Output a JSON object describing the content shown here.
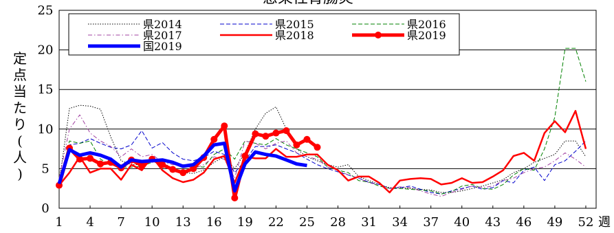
{
  "chart_data": {
    "type": "line",
    "title": "感染性胃腸炎",
    "ylabel": "定点当たり(人)",
    "xlabel": "週",
    "x_ticks": [
      "1",
      "4",
      "7",
      "10",
      "13",
      "16",
      "19",
      "22",
      "25",
      "28",
      "31",
      "34",
      "37",
      "40",
      "43",
      "46",
      "49",
      "52"
    ],
    "y_ticks": [
      "0",
      "5",
      "10",
      "15",
      "20",
      "25"
    ],
    "ylim": [
      0,
      25
    ],
    "xlim": [
      1,
      53
    ],
    "grid": "horizontal",
    "legend_position": "top-left",
    "series": [
      {
        "name": "県2014",
        "style": "dotted",
        "color": "#000000",
        "values": [
          3.2,
          12.6,
          13.0,
          12.9,
          12.5,
          9.0,
          6.0,
          5.5,
          5.5,
          6.2,
          5.8,
          5.0,
          4.5,
          4.4,
          4.8,
          5.8,
          6.5,
          5.0,
          7.0,
          10.0,
          12.0,
          12.8,
          10.0,
          7.5,
          6.5,
          6.0,
          5.5,
          5.2,
          5.5,
          4.0,
          3.5,
          3.0,
          2.6,
          2.6,
          2.5,
          2.4,
          2.3,
          2.0,
          2.0,
          2.2,
          2.5,
          2.8,
          3.2,
          3.6,
          4.5,
          5.0,
          5.8,
          6.3,
          6.8,
          8.5,
          8.5,
          6.5
        ]
      },
      {
        "name": "県2015",
        "style": "dashed",
        "color": "#0000cc",
        "values": [
          3.2,
          8.0,
          8.2,
          8.8,
          8.2,
          7.7,
          7.5,
          8.0,
          9.8,
          7.6,
          8.3,
          7.0,
          6.2,
          6.0,
          6.4,
          7.2,
          6.8,
          4.5,
          6.0,
          7.8,
          7.8,
          8.0,
          7.5,
          7.0,
          6.2,
          5.5,
          5.0,
          4.6,
          4.2,
          3.8,
          3.3,
          3.0,
          2.5,
          2.6,
          2.8,
          2.4,
          2.0,
          1.8,
          2.2,
          2.5,
          2.8,
          2.4,
          2.6,
          3.5,
          3.2,
          4.8,
          5.2,
          3.5,
          5.5,
          6.0,
          7.2,
          8.5
        ]
      },
      {
        "name": "県2016",
        "style": "dashed",
        "color": "#008000",
        "values": [
          2.9,
          8.5,
          8.2,
          8.5,
          6.2,
          5.5,
          5.2,
          5.2,
          5.3,
          5.8,
          6.2,
          5.8,
          5.5,
          5.3,
          5.2,
          6.8,
          7.5,
          6.2,
          8.5,
          8.2,
          8.0,
          8.8,
          8.0,
          7.5,
          7.0,
          6.5,
          5.2,
          4.8,
          4.5,
          3.5,
          3.3,
          2.8,
          2.5,
          2.5,
          2.4,
          2.3,
          2.2,
          1.8,
          2.1,
          2.8,
          3.0,
          2.5,
          2.4,
          3.0,
          4.2,
          5.0,
          4.8,
          7.5,
          11.5,
          20.2,
          20.2,
          16.0
        ]
      },
      {
        "name": "県2017",
        "style": "dashdot",
        "color": "#a040a0",
        "values": [
          3.8,
          10.0,
          11.8,
          9.5,
          8.5,
          7.8,
          6.5,
          7.5,
          6.5,
          6.8,
          5.8,
          5.5,
          5.5,
          5.0,
          5.5,
          6.5,
          6.2,
          3.8,
          8.5,
          8.2,
          7.5,
          8.2,
          8.5,
          7.0,
          6.5,
          6.2,
          5.2,
          4.8,
          4.2,
          3.8,
          3.2,
          3.0,
          2.5,
          2.7,
          2.6,
          2.2,
          1.8,
          1.5,
          2.0,
          2.4,
          2.8,
          2.6,
          2.8,
          3.5,
          3.8,
          4.5,
          5.0,
          5.2,
          6.0,
          7.0,
          6.2,
          5.2
        ]
      },
      {
        "name": "県2018",
        "style": "solid",
        "color": "#ff0000",
        "values": [
          2.9,
          4.5,
          6.5,
          4.5,
          5.0,
          5.0,
          3.6,
          5.5,
          4.8,
          6.5,
          4.8,
          3.8,
          3.3,
          3.6,
          4.5,
          6.2,
          6.6,
          3.2,
          6.5,
          6.3,
          6.3,
          7.5,
          6.5,
          6.5,
          6.8,
          6.8,
          5.5,
          4.8,
          3.5,
          4.0,
          4.0,
          3.2,
          2.0,
          3.5,
          3.7,
          3.8,
          3.7,
          3.0,
          3.2,
          3.8,
          3.2,
          3.3,
          4.0,
          4.8,
          6.6,
          7.0,
          6.0,
          9.5,
          11.0,
          9.6,
          12.3,
          7.5
        ]
      },
      {
        "name": "県2019",
        "style": "bold-markers",
        "color": "#ff0000",
        "values": [
          2.9,
          7.6,
          6.2,
          6.3,
          5.6,
          5.8,
          5.1,
          6.1,
          5.4,
          6.2,
          5.5,
          4.9,
          4.5,
          5.0,
          6.4,
          8.7,
          10.4,
          1.3,
          6.6,
          9.4,
          9.1,
          9.5,
          9.8,
          8.0,
          8.7,
          7.7
        ]
      },
      {
        "name": "国2019",
        "style": "bold",
        "color": "#0000ff",
        "values": [
          3.1,
          7.4,
          6.7,
          7.0,
          6.7,
          6.2,
          5.2,
          6.1,
          5.9,
          6.0,
          6.1,
          5.8,
          5.3,
          5.5,
          6.6,
          8.0,
          8.2,
          2.2,
          5.6,
          7.1,
          6.8,
          6.6,
          6.1,
          5.6,
          5.4
        ]
      }
    ]
  }
}
